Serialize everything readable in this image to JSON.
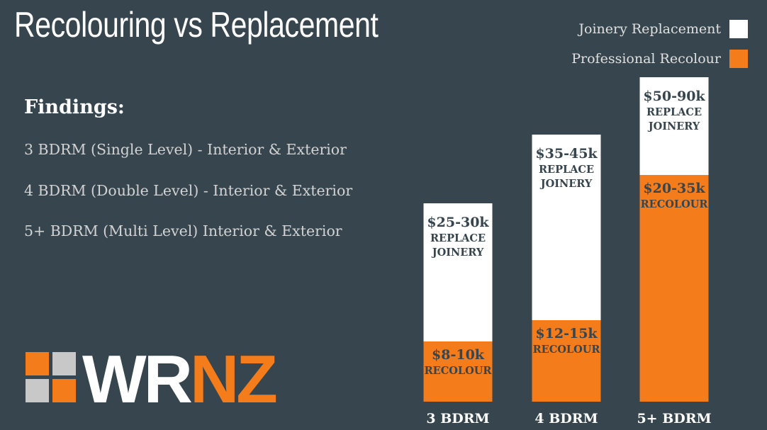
{
  "title": "Recolouring vs Replacement",
  "legend": [
    {
      "label": "Joinery Replacement",
      "color": "#ffffff"
    },
    {
      "label": "Professional Recolour",
      "color": "#f47c1a"
    }
  ],
  "findings": {
    "heading": "Findings:",
    "items": [
      "3 BDRM (Single Level) - Interior & Exterior",
      "4 BDRM (Double Level) - Interior & Exterior",
      "5+ BDRM (Multi Level) Interior & Exterior"
    ]
  },
  "logo": {
    "text_white": "WR",
    "text_orange": "NZ",
    "tile_colors": [
      "#f47c1a",
      "#c8c8c8",
      "#c8c8c8",
      "#f47c1a"
    ]
  },
  "colors": {
    "background": "#36454e",
    "replacement": "#ffffff",
    "recolour": "#f47c1a"
  },
  "chart_data": {
    "type": "bar",
    "stacked": true,
    "categories": [
      "3 BDRM",
      "4 BDRM",
      "5+ BDRM"
    ],
    "series": [
      {
        "name": "Professional Recolour",
        "low": [
          8,
          12,
          20
        ],
        "high": [
          10,
          15,
          35
        ],
        "labels": [
          "$8-10k",
          "$12-15k",
          "$20-35k"
        ],
        "sublabel": "RECOLOUR"
      },
      {
        "name": "Joinery Replacement",
        "low": [
          25,
          35,
          50
        ],
        "high": [
          30,
          45,
          90
        ],
        "labels": [
          "$25-30k",
          "$35-45k",
          "$50-90k"
        ],
        "sublabel": [
          "REPLACE",
          "JOINERY"
        ]
      }
    ],
    "legend_position": "top-right",
    "grid": false
  }
}
